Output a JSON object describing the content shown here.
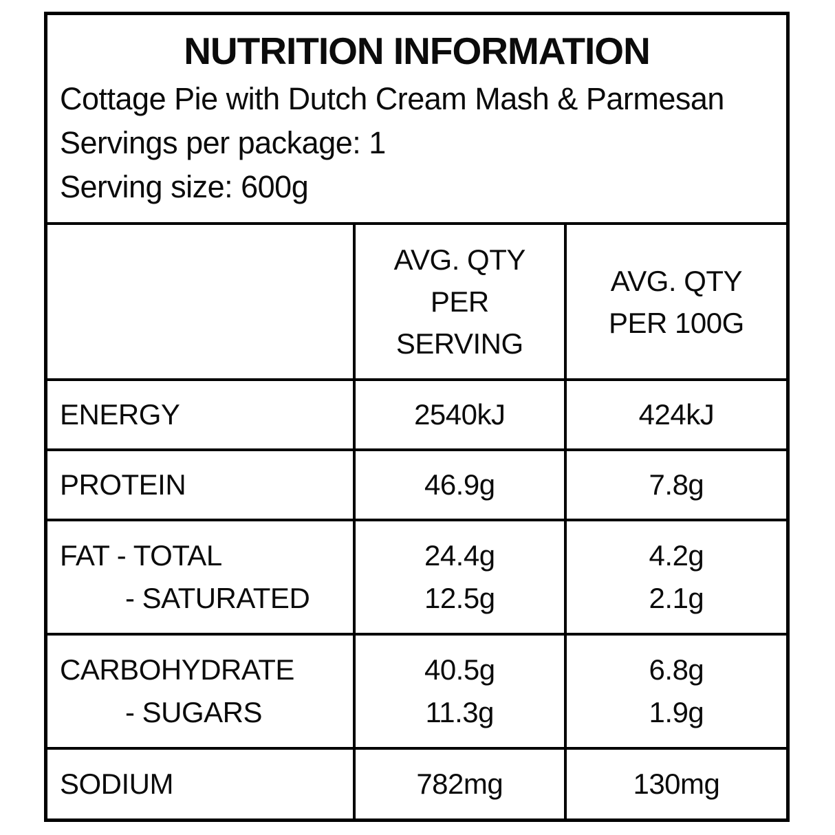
{
  "colors": {
    "border": "#000000",
    "background": "#ffffff",
    "text": "#0b0b0b"
  },
  "header": {
    "title": "NUTRITION INFORMATION",
    "product_name": "Cottage Pie with Dutch Cream Mash & Parmesan",
    "servings_per_package": "Servings per package: 1",
    "serving_size": "Serving size: 600g"
  },
  "table": {
    "col_serving_lines": [
      "AVG. QTY",
      "PER",
      "SERVING"
    ],
    "col_per100g_lines": [
      "AVG. QTY",
      "PER 100G"
    ],
    "rows": [
      {
        "nutrient": "ENERGY",
        "per_serving": "2540kJ",
        "per_100g": "424kJ"
      },
      {
        "nutrient": "PROTEIN",
        "per_serving": "46.9g",
        "per_100g": "7.8g"
      },
      {
        "nutrient": "FAT - TOTAL",
        "sub_nutrient": "- SATURATED",
        "per_serving": "24.4g",
        "sub_per_serving": "12.5g",
        "per_100g": "4.2g",
        "sub_per_100g": "2.1g"
      },
      {
        "nutrient": "CARBOHYDRATE",
        "sub_nutrient": "- SUGARS",
        "per_serving": "40.5g",
        "sub_per_serving": "11.3g",
        "per_100g": "6.8g",
        "sub_per_100g": "1.9g"
      },
      {
        "nutrient": "SODIUM",
        "per_serving": "782mg",
        "per_100g": "130mg"
      }
    ]
  }
}
